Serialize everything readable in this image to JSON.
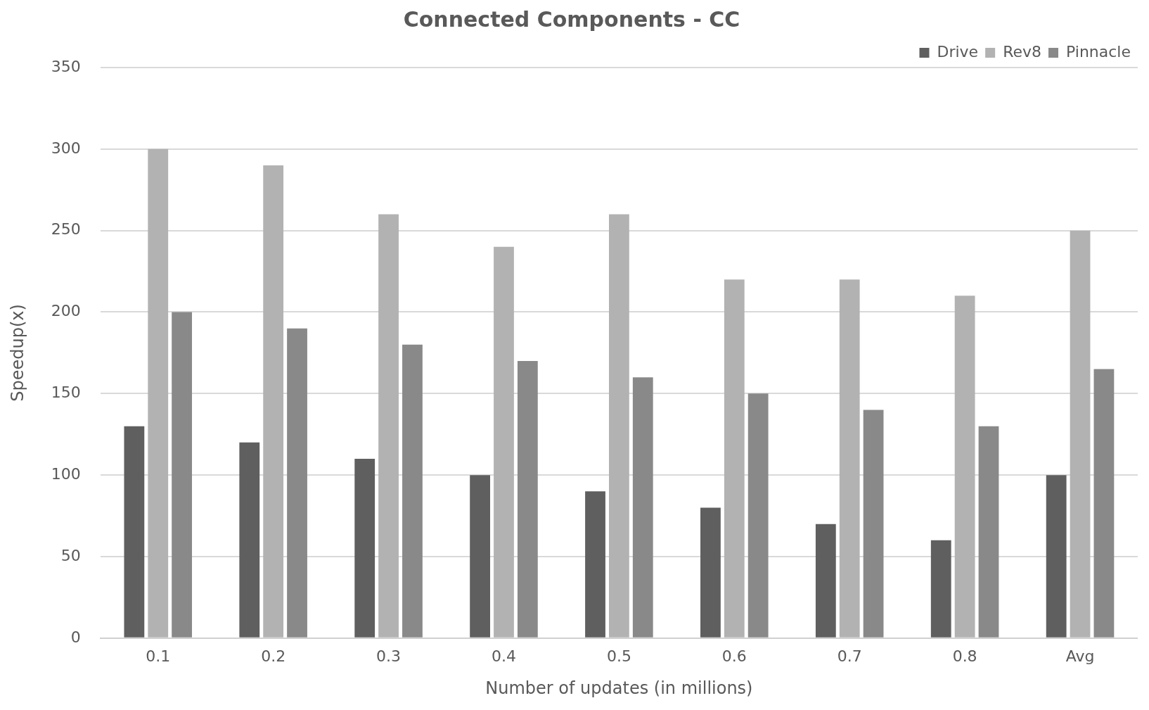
{
  "chart_data": {
    "type": "bar",
    "title": "Connected Components - CC",
    "xlabel": "Number of updates (in millions)",
    "ylabel": "Speedup(x)",
    "categories": [
      "0.1",
      "0.2",
      "0.3",
      "0.4",
      "0.5",
      "0.6",
      "0.7",
      "0.8",
      "Avg"
    ],
    "series": [
      {
        "name": "Drive",
        "color": "#5f5f5f",
        "values": [
          130,
          120,
          110,
          100,
          90,
          80,
          70,
          60,
          100
        ]
      },
      {
        "name": "Rev8",
        "color": "#b2b2b2",
        "values": [
          300,
          290,
          260,
          240,
          260,
          220,
          220,
          210,
          250
        ]
      },
      {
        "name": "Pinnacle",
        "color": "#898989",
        "values": [
          200,
          190,
          180,
          170,
          160,
          150,
          140,
          130,
          165
        ]
      }
    ],
    "ylim": [
      0,
      350
    ],
    "yticks": [
      0,
      50,
      100,
      150,
      200,
      250,
      300,
      350
    ],
    "grid": "y",
    "legend": "top right"
  }
}
